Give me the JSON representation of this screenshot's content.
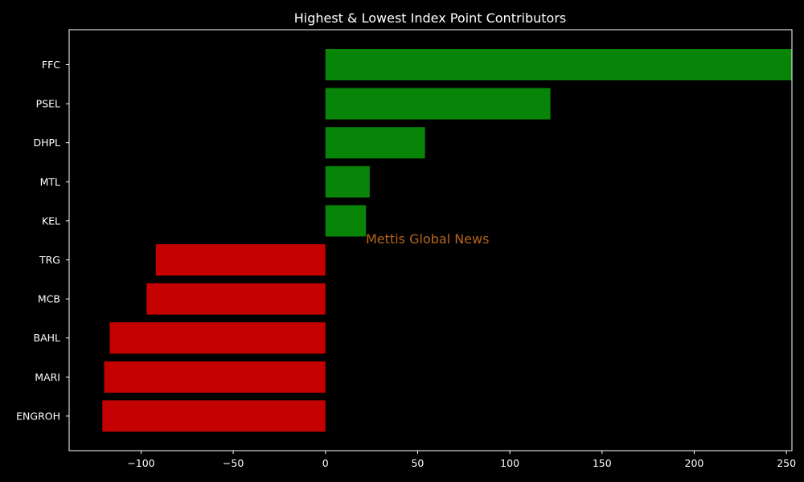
{
  "chart_data": {
    "type": "bar",
    "orientation": "horizontal",
    "title": "Highest & Lowest Index Point Contributors",
    "xlabel": "",
    "ylabel": "",
    "categories": [
      "FFC",
      "PSEL",
      "DHPL",
      "MTL",
      "KEL",
      "TRG",
      "MCB",
      "BAHL",
      "MARI",
      "ENGROH"
    ],
    "values": [
      254,
      122,
      54,
      24,
      22,
      -92,
      -97,
      -117,
      -120,
      -121
    ],
    "xlim": [
      -139,
      253
    ],
    "xticks": [
      -100,
      -50,
      0,
      50,
      100,
      150,
      200,
      250
    ],
    "xtick_labels": [
      "−100",
      "−50",
      "0",
      "50",
      "100",
      "150",
      "200",
      "250"
    ],
    "grid": false,
    "colors": {
      "positive": "#088508",
      "negative": "#c40000",
      "background": "#000000",
      "axes": "#ffffff",
      "text": "#ffffff"
    }
  },
  "watermark": {
    "text": "Mettis Global News",
    "color": "#b5651d"
  }
}
